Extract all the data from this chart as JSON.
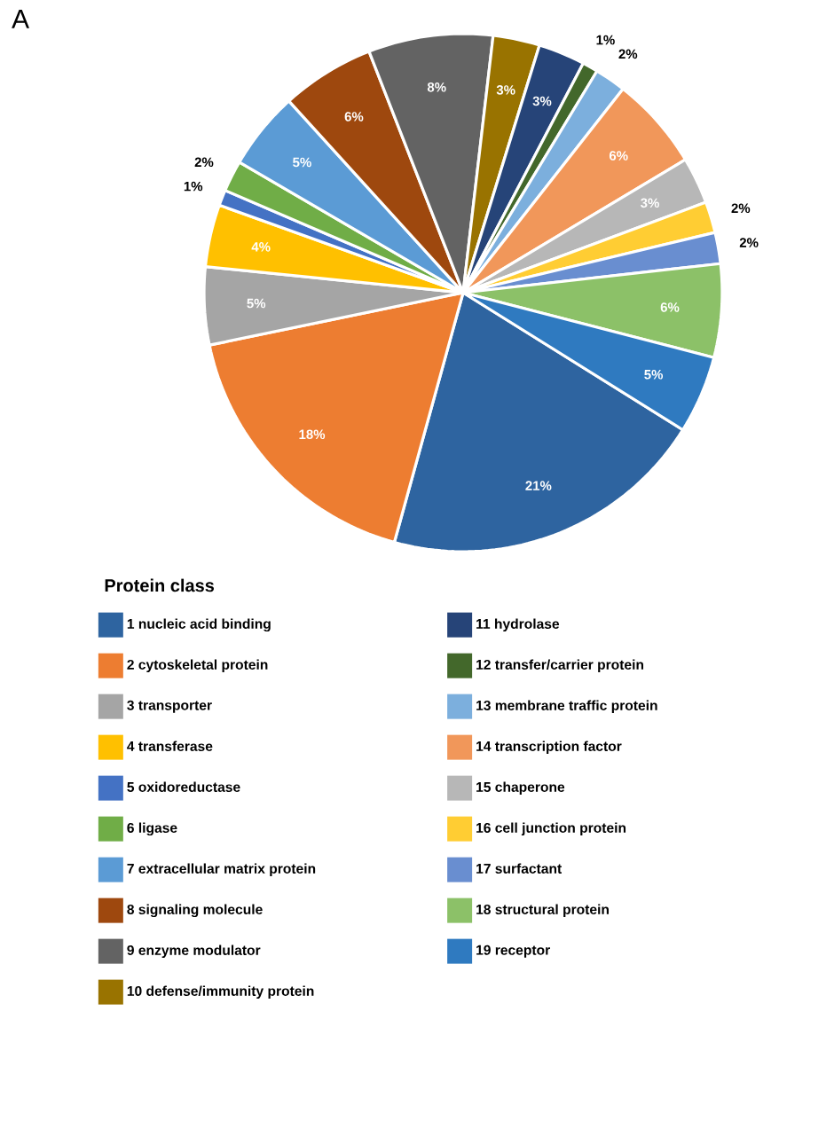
{
  "chart_data": {
    "type": "pie",
    "title": "A",
    "legend_title": "Protein class",
    "categories": [
      "1 nucleic acid binding",
      "2 cytoskeletal protein",
      "3 transporter",
      "4 transferase",
      "5 oxidoreductase",
      "6 ligase",
      "7 extracellular matrix protein",
      "8 signaling molecule",
      "9 enzyme modulator",
      "10 defense/immunity protein",
      "11 hydrolase",
      "12 transfer/carrier protein",
      "13 membrane traffic protein",
      "14 transcription factor",
      "15 chaperone",
      "16 cell junction protein",
      "17 surfactant",
      "18 structural protein",
      "19 receptor"
    ],
    "values": [
      21,
      18,
      5,
      4,
      1,
      2,
      5,
      6,
      8,
      3,
      3,
      1,
      2,
      6,
      3,
      2,
      2,
      6,
      5
    ],
    "value_labels": [
      "21%",
      "18%",
      "5%",
      "4%",
      "1%",
      "2%",
      "5%",
      "6%",
      "8%",
      "3%",
      "3%",
      "1%",
      "2%",
      "6%",
      "3%",
      "2%",
      "2%",
      "6%",
      "5%"
    ],
    "colors": [
      "#2e64a0",
      "#ed7d31",
      "#a5a5a5",
      "#ffc000",
      "#4472c4",
      "#70ad47",
      "#5b9bd5",
      "#9e480e",
      "#636363",
      "#997300",
      "#264478",
      "#43682b",
      "#7cafdd",
      "#f1975a",
      "#b7b7b7",
      "#ffcd33",
      "#698ed0",
      "#8cc168",
      "#2f7ac0"
    ],
    "legend": "bottom"
  }
}
